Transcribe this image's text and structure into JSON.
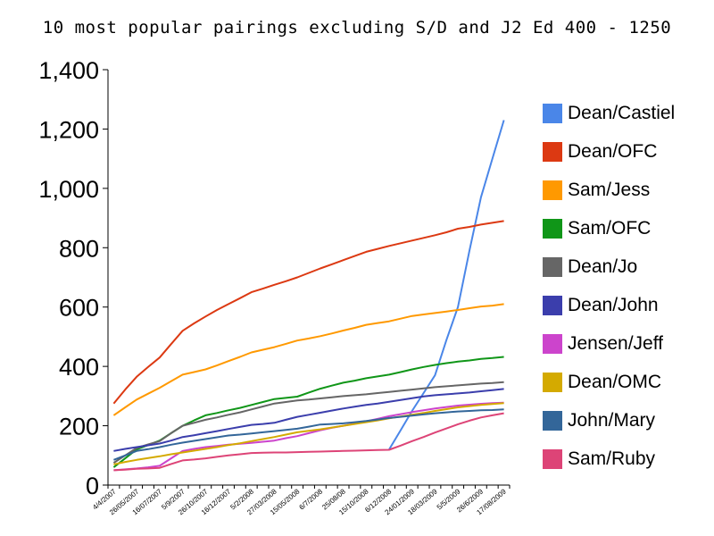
{
  "chart_data": {
    "type": "line",
    "title": "10 most popular pairings excluding S/D and J2 Ed 400 - 1250",
    "xlabel": "",
    "ylabel": "",
    "ylim": [
      0,
      1400
    ],
    "yticks": [
      0,
      200,
      400,
      600,
      800,
      1000,
      1200,
      1400
    ],
    "ytick_labels": [
      "0",
      "200",
      "400",
      "600",
      "800",
      "1,000",
      "1,200",
      "1,400"
    ],
    "categories": [
      "4/4/2007",
      "",
      "26/05/2007",
      "",
      "16/07/2007",
      "",
      "5/9/2007",
      "",
      "26/10/2007",
      "",
      "16/12/2007",
      "",
      "5/2/2008",
      "",
      "27/03/2008",
      "",
      "15/05/2008",
      "",
      "6/7/2008",
      "",
      "25/08/08",
      "",
      "15/10/2008",
      "",
      "6/12/2008",
      "",
      "24/01/2009",
      "",
      "18/03/2009",
      "",
      "5/5/2009",
      "",
      "26/6/2009",
      "",
      "17/08/2009"
    ],
    "grid": false,
    "legend_position": "right",
    "series": [
      {
        "name": "Dean/Castiel",
        "color": "#4a86e8",
        "values": [
          null,
          null,
          null,
          null,
          null,
          null,
          null,
          null,
          null,
          null,
          null,
          null,
          null,
          null,
          null,
          null,
          null,
          null,
          null,
          null,
          null,
          null,
          null,
          null,
          120,
          185,
          250,
          310,
          370,
          490,
          600,
          790,
          970,
          1100,
          1230
        ]
      },
      {
        "name": "Dean/OFC",
        "color": "#dc3912",
        "values": [
          275,
          322,
          365,
          398,
          430,
          475,
          520,
          545,
          568,
          590,
          610,
          630,
          650,
          662,
          675,
          687,
          700,
          715,
          730,
          744,
          758,
          772,
          786,
          796,
          806,
          815,
          824,
          833,
          842,
          852,
          864,
          870,
          878,
          884,
          890
        ]
      },
      {
        "name": "Sam/Jess",
        "color": "#ff9900",
        "values": [
          235,
          262,
          288,
          308,
          328,
          350,
          372,
          381,
          390,
          403,
          418,
          432,
          447,
          456,
          465,
          476,
          487,
          494,
          502,
          511,
          521,
          530,
          540,
          546,
          552,
          561,
          570,
          575,
          580,
          585,
          590,
          596,
          602,
          605,
          610
        ]
      },
      {
        "name": "Sam/OFC",
        "color": "#109618",
        "values": [
          60,
          90,
          120,
          135,
          150,
          175,
          200,
          218,
          235,
          243,
          252,
          260,
          270,
          280,
          290,
          294,
          298,
          312,
          325,
          335,
          345,
          352,
          360,
          366,
          372,
          381,
          390,
          398,
          405,
          411,
          416,
          420,
          425,
          428,
          432
        ]
      },
      {
        "name": "Dean/Jo",
        "color": "#666666",
        "values": [
          75,
          100,
          125,
          137,
          148,
          175,
          200,
          210,
          220,
          228,
          237,
          245,
          255,
          265,
          275,
          280,
          285,
          288,
          292,
          296,
          300,
          303,
          306,
          310,
          314,
          318,
          322,
          326,
          330,
          333,
          336,
          339,
          342,
          344,
          347
        ]
      },
      {
        "name": "Dean/John",
        "color": "#3b3eac",
        "values": [
          115,
          122,
          128,
          134,
          140,
          150,
          162,
          168,
          175,
          182,
          189,
          196,
          203,
          206,
          210,
          220,
          230,
          237,
          244,
          251,
          258,
          264,
          270,
          275,
          281,
          287,
          293,
          299,
          303,
          306,
          309,
          312,
          316,
          320,
          324
        ]
      },
      {
        "name": "Jensen/Jeff",
        "color": "#cc44cc",
        "values": [
          50,
          53,
          56,
          60,
          65,
          90,
          115,
          122,
          128,
          132,
          136,
          139,
          142,
          146,
          150,
          158,
          165,
          175,
          185,
          193,
          200,
          207,
          215,
          223,
          232,
          239,
          246,
          252,
          258,
          263,
          268,
          271,
          274,
          276,
          278
        ]
      },
      {
        "name": "Dean/OMC",
        "color": "#d4aa00",
        "values": [
          70,
          78,
          85,
          91,
          97,
          104,
          110,
          116,
          122,
          128,
          135,
          141,
          148,
          155,
          162,
          170,
          178,
          183,
          188,
          194,
          200,
          206,
          212,
          218,
          225,
          231,
          237,
          243,
          250,
          256,
          262,
          266,
          270,
          273,
          276
        ]
      },
      {
        "name": "John/Mary",
        "color": "#336699",
        "values": [
          85,
          100,
          115,
          121,
          128,
          136,
          143,
          149,
          155,
          161,
          167,
          170,
          174,
          178,
          182,
          186,
          190,
          197,
          204,
          206,
          208,
          212,
          216,
          221,
          226,
          230,
          234,
          238,
          242,
          245,
          248,
          250,
          252,
          253,
          255
        ]
      },
      {
        "name": "Sam/Ruby",
        "color": "#dd4477",
        "values": [
          50,
          52,
          55,
          56,
          58,
          71,
          83,
          86,
          90,
          95,
          100,
          104,
          108,
          109,
          110,
          110,
          111,
          112,
          113,
          114,
          115,
          116,
          117,
          118,
          119,
          133,
          148,
          162,
          177,
          191,
          205,
          217,
          228,
          235,
          242
        ]
      }
    ]
  }
}
